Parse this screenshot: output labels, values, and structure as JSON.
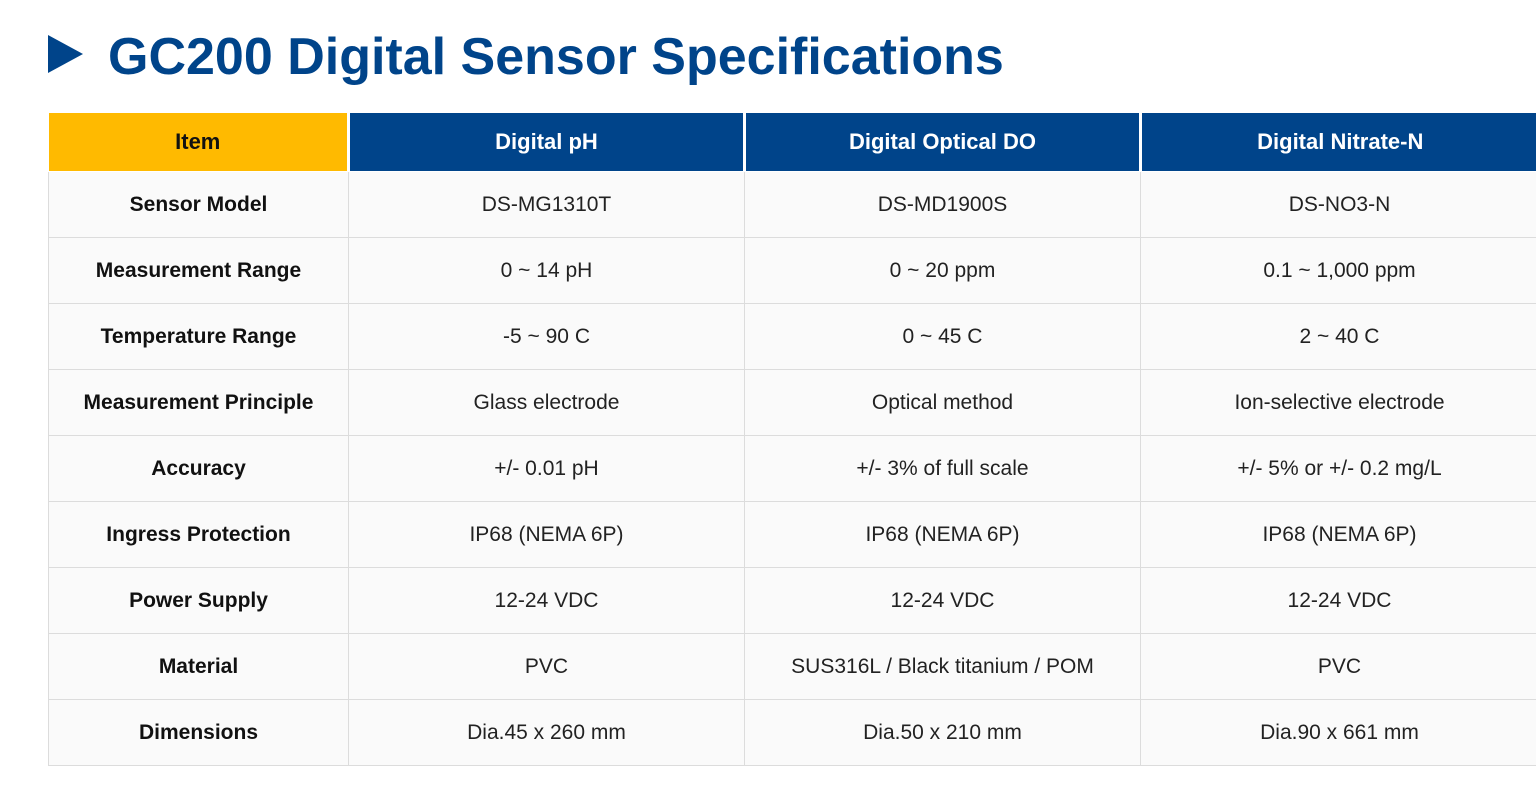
{
  "header": {
    "title": "GC200 Digital Sensor Specifications"
  },
  "table": {
    "columns": [
      "Item",
      "Digital pH",
      "Digital Optical DO",
      "Digital Nitrate-N"
    ],
    "rows": [
      [
        "Sensor Model",
        "DS-MG1310T",
        "DS-MD1900S",
        "DS-NO3-N"
      ],
      [
        "Measurement Range",
        "0 ~ 14 pH",
        "0 ~ 20 ppm",
        "0.1 ~ 1,000 ppm"
      ],
      [
        "Temperature Range",
        "-5 ~ 90 C",
        "0 ~ 45 C",
        "2 ~ 40 C"
      ],
      [
        "Measurement Principle",
        "Glass electrode",
        "Optical method",
        "Ion-selective electrode"
      ],
      [
        "Accuracy",
        "+/- 0.01 pH",
        "+/- 3% of full scale",
        "+/- 5% or +/- 0.2 mg/L"
      ],
      [
        "Ingress Protection",
        "IP68 (NEMA 6P)",
        "IP68 (NEMA 6P)",
        "IP68 (NEMA 6P)"
      ],
      [
        "Power Supply",
        "12-24 VDC",
        "12-24 VDC",
        "12-24 VDC"
      ],
      [
        "Material",
        "PVC",
        "SUS316L / Black titanium / POM",
        "PVC"
      ],
      [
        "Dimensions",
        "Dia.45 x 260 mm",
        "Dia.50 x 210 mm",
        "Dia.90 x 661 mm"
      ]
    ]
  }
}
